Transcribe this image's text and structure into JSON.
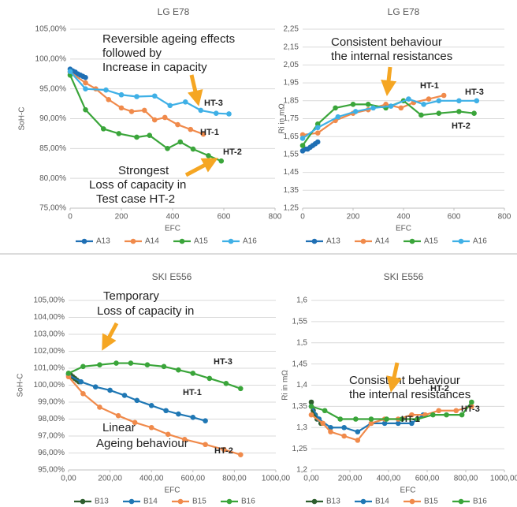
{
  "chart_data": [
    {
      "type": "line",
      "title": "LG E78",
      "x_label": "EFC",
      "y_label": "SoH-C",
      "grid": true,
      "xlim": [
        0,
        800
      ],
      "xticks": [
        0,
        200,
        400,
        600,
        800
      ],
      "ylim": [
        75,
        105
      ],
      "yticks": [
        {
          "value": 75,
          "label": "75,00%"
        },
        {
          "value": 80,
          "label": "80,00%"
        },
        {
          "value": 85,
          "label": "85,00%"
        },
        {
          "value": 90,
          "label": "90,00%"
        },
        {
          "value": 95,
          "label": "95,00%"
        },
        {
          "value": 100,
          "label": "100,00%"
        },
        {
          "value": 105,
          "label": "105,00%"
        }
      ],
      "series": [
        {
          "name": "A13",
          "color": "#1f6fb4",
          "x": [
            0,
            10,
            20,
            30,
            40,
            50,
            60
          ],
          "values": [
            98.3,
            98.0,
            97.8,
            97.5,
            97.3,
            97.1,
            96.9
          ]
        },
        {
          "name": "A14",
          "color": "#f08a4b",
          "x": [
            0,
            60,
            100,
            150,
            200,
            240,
            290,
            330,
            370,
            420,
            470,
            520
          ],
          "values": [
            97.8,
            96.0,
            95.0,
            93.2,
            91.8,
            91.2,
            91.4,
            89.8,
            90.2,
            89.0,
            88.2,
            87.4
          ]
        },
        {
          "name": "A15",
          "color": "#3aa53a",
          "x": [
            0,
            60,
            130,
            190,
            260,
            310,
            380,
            430,
            480,
            540,
            590
          ],
          "values": [
            97.3,
            91.5,
            88.3,
            87.5,
            86.9,
            87.2,
            85.0,
            86.1,
            84.9,
            83.8,
            82.9
          ]
        },
        {
          "name": "A16",
          "color": "#3fb0e6",
          "x": [
            0,
            60,
            140,
            200,
            260,
            330,
            390,
            450,
            510,
            570,
            620
          ],
          "values": [
            97.9,
            95.0,
            94.8,
            94.0,
            93.7,
            93.8,
            92.2,
            92.8,
            91.4,
            90.9,
            90.8
          ]
        }
      ],
      "annotations": [
        "Reversible ageing effects",
        "followed by",
        "Increase in capacity",
        "Strongest",
        "Loss of capacity in",
        "Test case HT-2",
        "HT-1",
        "HT-2",
        "HT-3"
      ]
    },
    {
      "type": "line",
      "title": "LG E78",
      "x_label": "EFC",
      "y_label": "Ri in mΩ",
      "grid": true,
      "xlim": [
        0,
        800
      ],
      "xticks": [
        0,
        200,
        400,
        600,
        800
      ],
      "ylim": [
        1.25,
        2.25
      ],
      "yticks": [
        {
          "value": 1.25,
          "label": "1,25"
        },
        {
          "value": 1.35,
          "label": "1,35"
        },
        {
          "value": 1.45,
          "label": "1,45"
        },
        {
          "value": 1.55,
          "label": "1,55"
        },
        {
          "value": 1.65,
          "label": "1,65"
        },
        {
          "value": 1.75,
          "label": "1,75"
        },
        {
          "value": 1.85,
          "label": "1,85"
        },
        {
          "value": 1.95,
          "label": "1,95"
        },
        {
          "value": 2.05,
          "label": "2,05"
        },
        {
          "value": 2.15,
          "label": "2,15"
        },
        {
          "value": 2.25,
          "label": "2,25"
        }
      ],
      "series": [
        {
          "name": "A13",
          "color": "#1f6fb4",
          "x": [
            0,
            10,
            20,
            30,
            40,
            50,
            60
          ],
          "values": [
            1.57,
            1.58,
            1.58,
            1.59,
            1.6,
            1.61,
            1.62
          ]
        },
        {
          "name": "A14",
          "color": "#f08a4b",
          "x": [
            0,
            60,
            130,
            200,
            260,
            330,
            390,
            440,
            500,
            560
          ],
          "values": [
            1.66,
            1.67,
            1.74,
            1.78,
            1.8,
            1.83,
            1.81,
            1.84,
            1.86,
            1.88
          ]
        },
        {
          "name": "A15",
          "color": "#3aa53a",
          "x": [
            0,
            60,
            130,
            200,
            260,
            330,
            400,
            470,
            540,
            620,
            680
          ],
          "values": [
            1.6,
            1.72,
            1.81,
            1.83,
            1.83,
            1.81,
            1.85,
            1.77,
            1.78,
            1.79,
            1.78
          ]
        },
        {
          "name": "A16",
          "color": "#3fb0e6",
          "x": [
            0,
            60,
            140,
            210,
            280,
            350,
            420,
            480,
            540,
            620,
            690
          ],
          "values": [
            1.64,
            1.7,
            1.76,
            1.79,
            1.81,
            1.82,
            1.86,
            1.83,
            1.85,
            1.85,
            1.85
          ]
        }
      ],
      "annotations": [
        "Consistent behaviour",
        "the internal resistances",
        "HT-1",
        "HT-2",
        "HT-3"
      ]
    },
    {
      "type": "line",
      "title": "SKI E556",
      "x_label": "EFC",
      "y_label": "SoH-C",
      "grid": true,
      "xlim": [
        0,
        1000
      ],
      "xticks": [
        {
          "value": 0,
          "label": "0,00"
        },
        {
          "value": 200,
          "label": "200,00"
        },
        {
          "value": 400,
          "label": "400,00"
        },
        {
          "value": 600,
          "label": "600,00"
        },
        {
          "value": 800,
          "label": "800,00"
        },
        {
          "value": 1000,
          "label": "1000,00"
        }
      ],
      "ylim": [
        95,
        105
      ],
      "yticks": [
        {
          "value": 95,
          "label": "95,00%"
        },
        {
          "value": 96,
          "label": "96,00%"
        },
        {
          "value": 97,
          "label": "97,00%"
        },
        {
          "value": 98,
          "label": "98,00%"
        },
        {
          "value": 99,
          "label": "99,00%"
        },
        {
          "value": 100,
          "label": "100,00%"
        },
        {
          "value": 101,
          "label": "101,00%"
        },
        {
          "value": 102,
          "label": "102,00%"
        },
        {
          "value": 103,
          "label": "103,00%"
        },
        {
          "value": 104,
          "label": "104,00%"
        },
        {
          "value": 105,
          "label": "105,00%"
        }
      ],
      "series": [
        {
          "name": "B13",
          "color": "#2e5e2e",
          "x": [
            0,
            10,
            20,
            30,
            40,
            50
          ],
          "values": [
            100.7,
            100.6,
            100.5,
            100.4,
            100.3,
            100.2
          ]
        },
        {
          "name": "B14",
          "color": "#1f77b4",
          "x": [
            0,
            60,
            130,
            200,
            270,
            330,
            400,
            470,
            530,
            600,
            660
          ],
          "values": [
            100.6,
            100.2,
            99.9,
            99.7,
            99.4,
            99.1,
            98.8,
            98.5,
            98.3,
            98.1,
            97.9
          ]
        },
        {
          "name": "B15",
          "color": "#f08a4b",
          "x": [
            0,
            70,
            150,
            240,
            320,
            400,
            480,
            560,
            660,
            750,
            830
          ],
          "values": [
            100.5,
            99.5,
            98.7,
            98.2,
            97.8,
            97.5,
            97.1,
            96.8,
            96.5,
            96.2,
            95.9
          ]
        },
        {
          "name": "B16",
          "color": "#3aa53a",
          "x": [
            0,
            70,
            150,
            230,
            300,
            380,
            460,
            530,
            600,
            680,
            760,
            830
          ],
          "values": [
            100.7,
            101.1,
            101.2,
            101.3,
            101.3,
            101.2,
            101.1,
            100.9,
            100.7,
            100.4,
            100.1,
            99.8
          ]
        }
      ],
      "annotations": [
        "Temporary",
        "Loss of capacity in",
        "Linear",
        "Ageing behaviour",
        "HT-1",
        "HT-2",
        "HT-3"
      ]
    },
    {
      "type": "line",
      "title": "SKI E556",
      "x_label": "EFC",
      "y_label": "Ri in mΩ",
      "grid": true,
      "xlim": [
        0,
        1000
      ],
      "xticks": [
        {
          "value": 0,
          "label": "0,00"
        },
        {
          "value": 200,
          "label": "200,00"
        },
        {
          "value": 400,
          "label": "400,00"
        },
        {
          "value": 600,
          "label": "600,00"
        },
        {
          "value": 800,
          "label": "800,00"
        },
        {
          "value": 1000,
          "label": "1000,00"
        }
      ],
      "ylim": [
        1.2,
        1.6
      ],
      "yticks": [
        {
          "value": 1.2,
          "label": "1,2"
        },
        {
          "value": 1.25,
          "label": "1,25"
        },
        {
          "value": 1.3,
          "label": "1,3"
        },
        {
          "value": 1.35,
          "label": "1,35"
        },
        {
          "value": 1.4,
          "label": "1,4"
        },
        {
          "value": 1.45,
          "label": "1,45"
        },
        {
          "value": 1.5,
          "label": "1,5"
        },
        {
          "value": 1.55,
          "label": "1,55"
        },
        {
          "value": 1.6,
          "label": "1,6"
        }
      ],
      "series": [
        {
          "name": "B13",
          "color": "#2e5e2e",
          "x": [
            0,
            10,
            20,
            30,
            40,
            50
          ],
          "values": [
            1.36,
            1.34,
            1.33,
            1.32,
            1.32,
            1.31
          ]
        },
        {
          "name": "B14",
          "color": "#1f77b4",
          "x": [
            0,
            40,
            100,
            170,
            240,
            310,
            380,
            450,
            520,
            580
          ],
          "values": [
            1.35,
            1.32,
            1.3,
            1.3,
            1.29,
            1.31,
            1.31,
            1.31,
            1.31,
            1.33
          ]
        },
        {
          "name": "B15",
          "color": "#f08a4b",
          "x": [
            0,
            60,
            100,
            170,
            240,
            310,
            380,
            450,
            520,
            590,
            660,
            750,
            830
          ],
          "values": [
            1.33,
            1.31,
            1.29,
            1.28,
            1.27,
            1.31,
            1.32,
            1.32,
            1.33,
            1.33,
            1.34,
            1.34,
            1.35
          ]
        },
        {
          "name": "B16",
          "color": "#3aa53a",
          "x": [
            0,
            70,
            150,
            230,
            310,
            390,
            470,
            550,
            630,
            700,
            780,
            830
          ],
          "values": [
            1.35,
            1.34,
            1.32,
            1.32,
            1.32,
            1.32,
            1.32,
            1.32,
            1.33,
            1.33,
            1.33,
            1.36
          ]
        }
      ],
      "annotations": [
        "Consistent behaviour",
        "the internal resistances",
        "HT-2",
        "HT-1",
        "HT-3"
      ]
    }
  ]
}
